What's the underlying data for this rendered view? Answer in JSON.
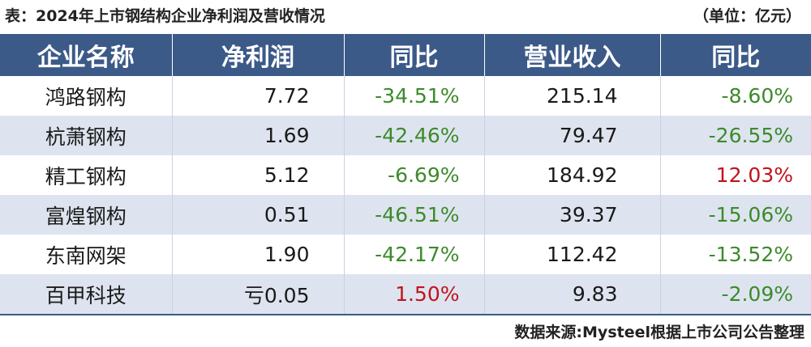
{
  "caption": {
    "title": "表：2024年上市钢结构企业净利润及营收情况",
    "unit": "（单位：亿元）"
  },
  "table": {
    "headers": [
      "企业名称",
      "净利润",
      "同比",
      "营业收入",
      "同比"
    ],
    "rows": [
      {
        "name": "鸿路钢构",
        "profit": "7.72",
        "profit_yoy": "-34.51%",
        "revenue": "215.14",
        "revenue_yoy": "-8.60%"
      },
      {
        "name": "杭萧钢构",
        "profit": "1.69",
        "profit_yoy": "-42.46%",
        "revenue": "79.47",
        "revenue_yoy": "-26.55%"
      },
      {
        "name": "精工钢构",
        "profit": "5.12",
        "profit_yoy": "-6.69%",
        "revenue": "184.92",
        "revenue_yoy": "12.03%"
      },
      {
        "name": "富煌钢构",
        "profit": "0.51",
        "profit_yoy": "-46.51%",
        "revenue": "39.37",
        "revenue_yoy": "-15.06%"
      },
      {
        "name": "东南网架",
        "profit": "1.90",
        "profit_yoy": "-42.17%",
        "revenue": "112.42",
        "revenue_yoy": "-13.52%"
      },
      {
        "name": "百甲科技",
        "profit": "亏0.05",
        "profit_yoy": "1.50%",
        "revenue": "9.83",
        "revenue_yoy": "-2.09%"
      }
    ]
  },
  "colors": {
    "header_bg": "#3c5a88",
    "stripe_bg": "#dde4ef",
    "negative": "#3d8a2b",
    "positive": "#c0141b"
  },
  "source": "数据来源:Mysteel根据上市公司公告整理"
}
